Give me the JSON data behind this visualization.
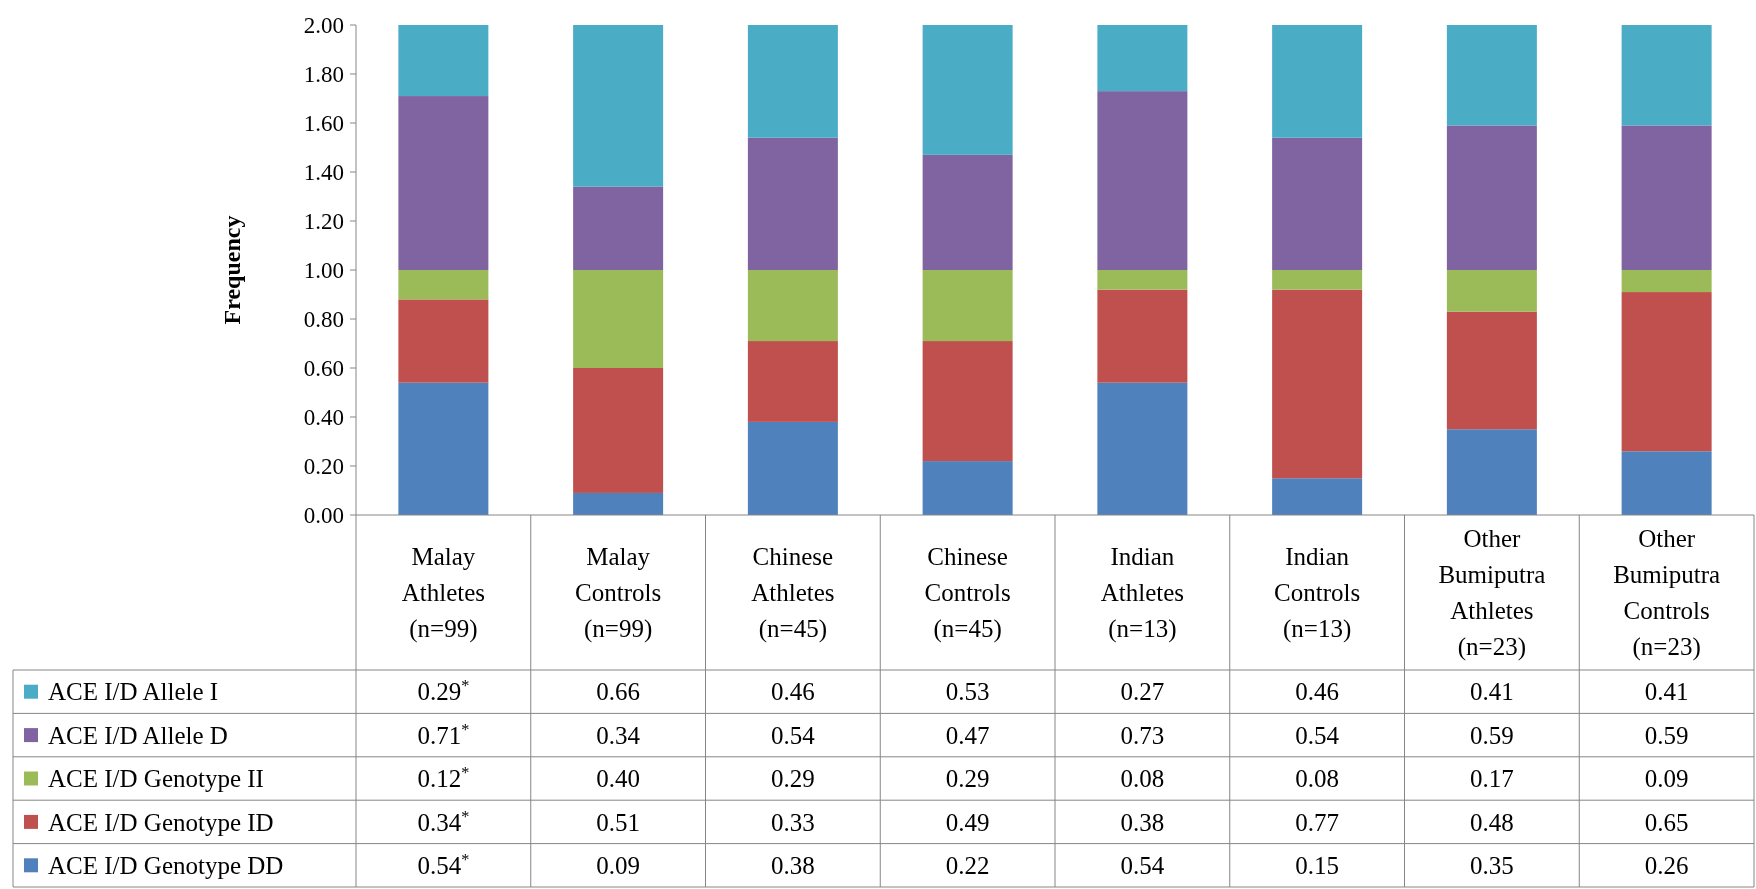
{
  "chart_data": {
    "type": "bar",
    "stacked": true,
    "ylabel": "Frequency",
    "categories": [
      "Malay Athletes (n=99)",
      "Malay Controls (n=99)",
      "Chinese Athletes (n=45)",
      "Chinese Controls (n=45)",
      "Indian Athletes (n=13)",
      "Indian Controls (n=13)",
      "Other Bumiputra Athletes (n=23)",
      "Other Bumiputra Controls (n=23)"
    ],
    "series": [
      {
        "name": "ACE I/D Genotype DD",
        "color": "#4f81bd",
        "values": [
          0.54,
          0.09,
          0.38,
          0.22,
          0.54,
          0.15,
          0.35,
          0.26
        ],
        "value_labels": [
          "0.54$^{*}$",
          "0.09",
          "0.38",
          "0.22",
          "0.54",
          "0.15",
          "0.35",
          "0.26"
        ]
      },
      {
        "name": "ACE I/D Genotype ID",
        "color": "#c0504d",
        "values": [
          0.34,
          0.51,
          0.33,
          0.49,
          0.38,
          0.77,
          0.48,
          0.65
        ],
        "value_labels": [
          "0.34$^{*}$",
          "0.51",
          "0.33",
          "0.49",
          "0.38",
          "0.77",
          "0.48",
          "0.65"
        ]
      },
      {
        "name": "ACE I/D Genotype II",
        "color": "#9bbb59",
        "values": [
          0.12,
          0.4,
          0.29,
          0.29,
          0.08,
          0.08,
          0.17,
          0.09
        ],
        "value_labels": [
          "0.12$^{*}$",
          "0.40",
          "0.29",
          "0.29",
          "0.08",
          "0.08",
          "0.17",
          "0.09"
        ]
      },
      {
        "name": "ACE I/D Allele D",
        "color": "#8064a2",
        "values": [
          0.71,
          0.34,
          0.54,
          0.47,
          0.73,
          0.54,
          0.59,
          0.59
        ],
        "value_labels": [
          "0.71$^{*}$",
          "0.34",
          "0.54",
          "0.47",
          "0.73",
          "0.54",
          "0.59",
          "0.59"
        ]
      },
      {
        "name": "ACE I/D Allele I",
        "color": "#4bacc6",
        "values": [
          0.29,
          0.66,
          0.46,
          0.53,
          0.27,
          0.46,
          0.41,
          0.41
        ],
        "value_labels": [
          "0.29$^{*}$",
          "0.66",
          "0.46",
          "0.53",
          "0.27",
          "0.46",
          "0.41",
          "0.41"
        ]
      }
    ],
    "ylim": [
      0,
      2
    ],
    "yticks": [
      {
        "value": 0,
        "label": "0.00"
      },
      {
        "value": 0.2,
        "label": "0.20"
      },
      {
        "value": 0.4,
        "label": "0.40"
      },
      {
        "value": 0.6,
        "label": "0.60"
      },
      {
        "value": 0.8,
        "label": "0.80"
      },
      {
        "value": 1,
        "label": "1.00"
      },
      {
        "value": 1.2,
        "label": "1.20"
      },
      {
        "value": 1.4,
        "label": "1.40"
      },
      {
        "value": 1.6,
        "label": "1.60"
      },
      {
        "value": 1.8,
        "label": "1.80"
      },
      {
        "value": 2,
        "label": "2.00"
      }
    ],
    "legend": "bottom left"
  }
}
